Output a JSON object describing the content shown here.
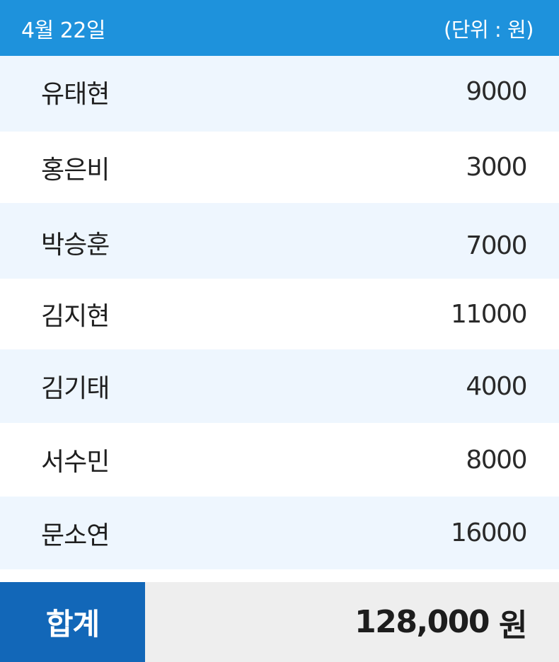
{
  "header": {
    "date": "4월 22일",
    "unit": "(단위 : 원)"
  },
  "rows": [
    {
      "name": "유태현",
      "amount": "9000"
    },
    {
      "name": "홍은비",
      "amount": "3000"
    },
    {
      "name": "박승훈",
      "amount": "7000"
    },
    {
      "name": "김지현",
      "amount": "11000"
    },
    {
      "name": "김기태",
      "amount": "4000"
    },
    {
      "name": "서수민",
      "amount": "8000"
    },
    {
      "name": "문소연",
      "amount": "16000"
    }
  ],
  "total": {
    "label": "합계",
    "value": "128,000",
    "currency": "원"
  },
  "colors": {
    "header": "#1e92dc",
    "total_label": "#1267b8",
    "row_alt": "#eef6fe",
    "total_value_bg": "#eeeeee"
  }
}
